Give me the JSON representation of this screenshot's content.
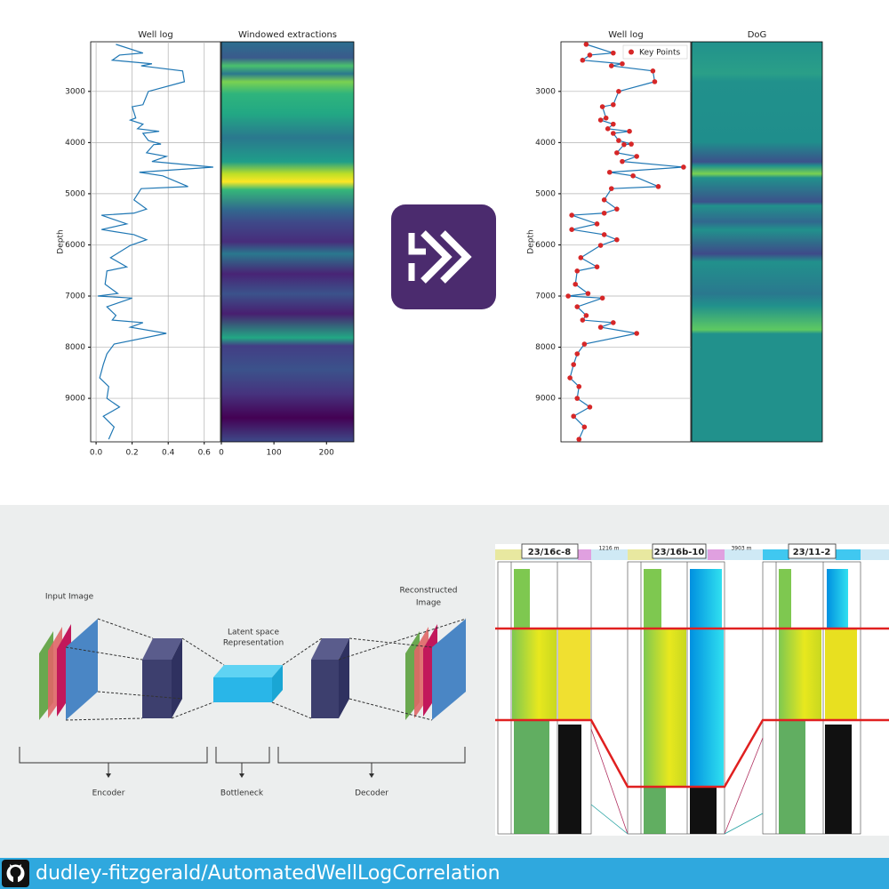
{
  "chart_data": [
    {
      "type": "line",
      "title": "Well log",
      "ylabel": "Depth",
      "y": [
        2080,
        2250,
        2290,
        2390,
        2460,
        2500,
        2600,
        2810,
        3000,
        3260,
        3300,
        3520,
        3560,
        3640,
        3730,
        3780,
        3820,
        3960,
        4030,
        4040,
        4200,
        4270,
        4370,
        4480,
        4580,
        4650,
        4860,
        4900,
        5120,
        5300,
        5380,
        5420,
        5590,
        5700,
        5800,
        5900,
        6010,
        6250,
        6430,
        6510,
        6770,
        6950,
        7000,
        7040,
        7210,
        7380,
        7470,
        7520,
        7610,
        7730,
        7940,
        8130,
        8340,
        8600,
        8770,
        9000,
        9170,
        9350,
        9560,
        9800
      ],
      "series": [
        {
          "color": "#1f77b4",
          "values": [
            0.11,
            0.26,
            0.13,
            0.09,
            0.31,
            0.25,
            0.48,
            0.49,
            0.29,
            0.26,
            0.2,
            0.22,
            0.19,
            0.26,
            0.23,
            0.35,
            0.26,
            0.29,
            0.36,
            0.32,
            0.28,
            0.39,
            0.31,
            0.65,
            0.24,
            0.37,
            0.51,
            0.25,
            0.21,
            0.28,
            0.21,
            0.03,
            0.17,
            0.03,
            0.21,
            0.28,
            0.19,
            0.08,
            0.17,
            0.06,
            0.05,
            0.12,
            0.01,
            0.2,
            0.06,
            0.11,
            0.09,
            0.26,
            0.19,
            0.39,
            0.1,
            0.06,
            0.04,
            0.02,
            0.07,
            0.06,
            0.13,
            0.04,
            0.1,
            0.07
          ]
        }
      ],
      "xlim": [
        -0.03,
        0.69
      ],
      "xticks": [
        {
          "value": 0,
          "label": "0.0"
        },
        0.2,
        0.4,
        0.6
      ],
      "ylim": [
        9850,
        2030
      ],
      "yticks": [
        3000,
        4000,
        5000,
        6000,
        7000,
        8000,
        9000
      ],
      "grid": true
    },
    {
      "type": "heatmap",
      "title": "Windowed extractions",
      "xlim": [
        0,
        252
      ],
      "xticks": [
        0,
        100,
        200
      ]
    },
    {
      "type": "line",
      "title": "Well log",
      "ylabel": "Depth",
      "legend": "upper right",
      "y": [
        2080,
        2250,
        2290,
        2390,
        2460,
        2500,
        2600,
        2810,
        3000,
        3260,
        3300,
        3520,
        3560,
        3640,
        3730,
        3780,
        3820,
        3960,
        4030,
        4040,
        4200,
        4270,
        4370,
        4480,
        4580,
        4650,
        4860,
        4900,
        5120,
        5300,
        5380,
        5420,
        5590,
        5700,
        5800,
        5900,
        6010,
        6250,
        6430,
        6510,
        6770,
        6950,
        7000,
        7040,
        7210,
        7380,
        7470,
        7520,
        7610,
        7730,
        7940,
        8130,
        8340,
        8600,
        8770,
        9000,
        9170,
        9350,
        9560,
        9800
      ],
      "series": [
        {
          "name": "Key Points",
          "color": "#d62728",
          "line_color": "#1f77b4",
          "marker": true,
          "values": [
            0.11,
            0.26,
            0.13,
            0.09,
            0.31,
            0.25,
            0.48,
            0.49,
            0.29,
            0.26,
            0.2,
            0.22,
            0.19,
            0.26,
            0.23,
            0.35,
            0.26,
            0.29,
            0.36,
            0.32,
            0.28,
            0.39,
            0.31,
            0.65,
            0.24,
            0.37,
            0.51,
            0.25,
            0.21,
            0.28,
            0.21,
            0.03,
            0.17,
            0.03,
            0.21,
            0.28,
            0.19,
            0.08,
            0.17,
            0.06,
            0.05,
            0.12,
            0.01,
            0.2,
            0.06,
            0.11,
            0.09,
            0.26,
            0.19,
            0.39,
            0.1,
            0.06,
            0.04,
            0.02,
            0.07,
            0.06,
            0.13,
            0.04,
            0.1,
            0.07
          ]
        }
      ],
      "xlim": [
        -0.03,
        0.69
      ],
      "ylim": [
        9850,
        2030
      ],
      "yticks": [
        3000,
        4000,
        5000,
        6000,
        7000,
        8000,
        9000
      ],
      "grid": true
    },
    {
      "type": "heatmap",
      "title": "DoG"
    }
  ],
  "autoencoder": {
    "input_label": "Input Image",
    "latent_label": [
      "Latent space",
      "Representation"
    ],
    "output_label": [
      "Reconstructed",
      "Image"
    ],
    "stages": [
      "Encoder",
      "Bottleneck",
      "Decoder"
    ]
  },
  "correlation": {
    "wells": [
      "23/16c-8",
      "23/16b-10",
      "23/11-2"
    ],
    "distances": [
      "1216 m",
      "3903 m"
    ]
  },
  "footer": {
    "repository": "dudley-fitzgerald/AutomatedWellLogCorrelation"
  }
}
